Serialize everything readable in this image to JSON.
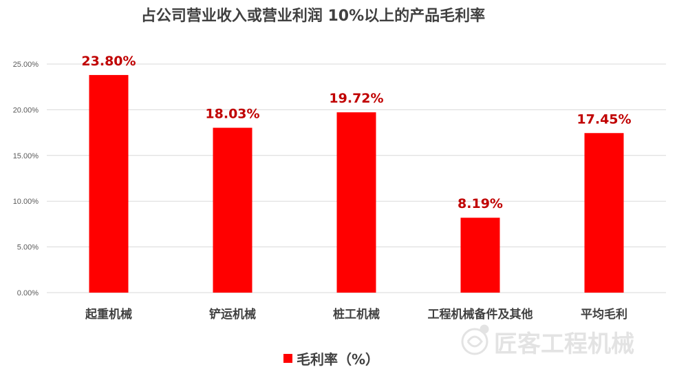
{
  "watermark": {
    "text": "匠客工程机械"
  },
  "chart_data": {
    "type": "bar",
    "title": "占公司营业收入或营业利润 10%以上的产品毛利率",
    "categories": [
      "起重机械",
      "铲运机械",
      "桩工机械",
      "工程机械备件及其他",
      "平均毛利"
    ],
    "series": [
      {
        "name": "毛利率（%）",
        "values": [
          0.238,
          0.1803,
          0.1972,
          0.0819,
          0.1745
        ],
        "labels": [
          "23.80%",
          "18.03%",
          "19.72%",
          "8.19%",
          "17.45%"
        ],
        "color": "#ff0000"
      }
    ],
    "yticks": [
      "0.00%",
      "5.00%",
      "10.00%",
      "15.00%",
      "20.00%",
      "25.00%"
    ],
    "ylim": [
      0,
      0.25
    ],
    "xlabel": "",
    "ylabel": "",
    "grid": true,
    "legend_position": "bottom",
    "label_color": "#c00000"
  }
}
